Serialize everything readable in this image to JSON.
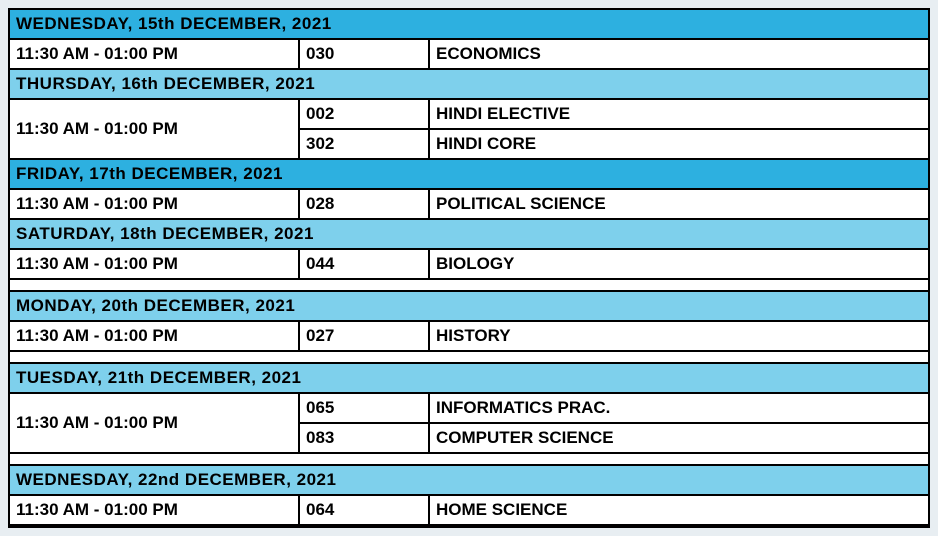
{
  "colors": {
    "header_bg_dark": "#2db0e0",
    "header_bg_light": "#7ed0ec",
    "row_bg": "#ffffff",
    "border": "#000000",
    "text": "#0a1a2a"
  },
  "column_widths": {
    "time": 290,
    "code": 130
  },
  "font_size": 17,
  "days": [
    {
      "header": "WEDNESDAY, 15th DECEMBER, 2021",
      "header_bg": "#2db0e0",
      "time": "11:30 AM  - 01:00 PM",
      "gap_before": false,
      "subjects": [
        {
          "code": "030",
          "name": "ECONOMICS"
        }
      ]
    },
    {
      "header": "THURSDAY, 16th DECEMBER, 2021",
      "header_bg": "#7ed0ec",
      "time": "11:30 AM  - 01:00 PM",
      "gap_before": false,
      "subjects": [
        {
          "code": "002",
          "name": "HINDI ELECTIVE"
        },
        {
          "code": "302",
          "name": "HINDI CORE"
        }
      ]
    },
    {
      "header": "FRIDAY, 17th DECEMBER, 2021",
      "header_bg": "#2db0e0",
      "time": "11:30 AM  - 01:00 PM",
      "gap_before": false,
      "subjects": [
        {
          "code": "028",
          "name": "POLITICAL SCIENCE"
        }
      ]
    },
    {
      "header": "SATURDAY, 18th DECEMBER, 2021",
      "header_bg": "#7ed0ec",
      "time": "11:30 AM  - 01:00 PM",
      "gap_before": false,
      "subjects": [
        {
          "code": "044",
          "name": "BIOLOGY"
        }
      ]
    },
    {
      "header": "MONDAY, 20th DECEMBER, 2021",
      "header_bg": "#7ed0ec",
      "time": "11:30 AM  - 01:00 PM",
      "gap_before": true,
      "subjects": [
        {
          "code": "027",
          "name": "HISTORY"
        }
      ]
    },
    {
      "header": "TUESDAY, 21th DECEMBER, 2021",
      "header_bg": "#7ed0ec",
      "time": "11:30 AM  - 01:00 PM",
      "gap_before": true,
      "subjects": [
        {
          "code": "065",
          "name": "INFORMATICS PRAC."
        },
        {
          "code": "083",
          "name": "COMPUTER SCIENCE"
        }
      ]
    },
    {
      "header": "WEDNESDAY, 22nd DECEMBER, 2021",
      "header_bg": "#7ed0ec",
      "time": "11:30 AM  - 01:00 PM",
      "gap_before": true,
      "subjects": [
        {
          "code": "064",
          "name": "HOME SCIENCE"
        }
      ]
    }
  ]
}
